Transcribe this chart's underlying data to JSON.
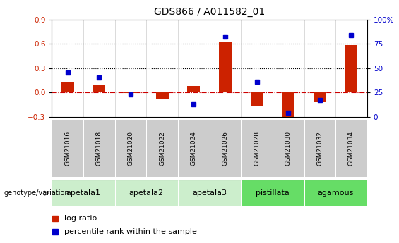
{
  "title": "GDS866 / A011582_01",
  "samples": [
    "GSM21016",
    "GSM21018",
    "GSM21020",
    "GSM21022",
    "GSM21024",
    "GSM21026",
    "GSM21028",
    "GSM21030",
    "GSM21032",
    "GSM21034"
  ],
  "log_ratio": [
    0.13,
    0.1,
    -0.01,
    -0.09,
    0.08,
    0.62,
    -0.17,
    -0.38,
    -0.12,
    0.58
  ],
  "percentile_rank": [
    0.45,
    0.4,
    0.23,
    null,
    0.13,
    0.82,
    0.36,
    0.04,
    0.17,
    0.84
  ],
  "groups": [
    {
      "label": "apetala1",
      "start": 0,
      "end": 2,
      "color": "#cceecc"
    },
    {
      "label": "apetala2",
      "start": 2,
      "end": 4,
      "color": "#cceecc"
    },
    {
      "label": "apetala3",
      "start": 4,
      "end": 6,
      "color": "#cceecc"
    },
    {
      "label": "pistillata",
      "start": 6,
      "end": 8,
      "color": "#66dd66"
    },
    {
      "label": "agamous",
      "start": 8,
      "end": 10,
      "color": "#66dd66"
    }
  ],
  "bar_color": "#cc2200",
  "dot_color": "#0000cc",
  "ylim_left": [
    -0.3,
    0.9
  ],
  "ylim_right": [
    0,
    100
  ],
  "yticks_left": [
    -0.3,
    0.0,
    0.3,
    0.6,
    0.9
  ],
  "yticks_right": [
    0,
    25,
    50,
    75,
    100
  ],
  "legend_items": [
    "log ratio",
    "percentile rank within the sample"
  ],
  "legend_colors": [
    "#cc2200",
    "#0000cc"
  ],
  "sample_box_color": "#cccccc",
  "group_separator_color": "#888888",
  "genotype_label": "genotype/variation"
}
